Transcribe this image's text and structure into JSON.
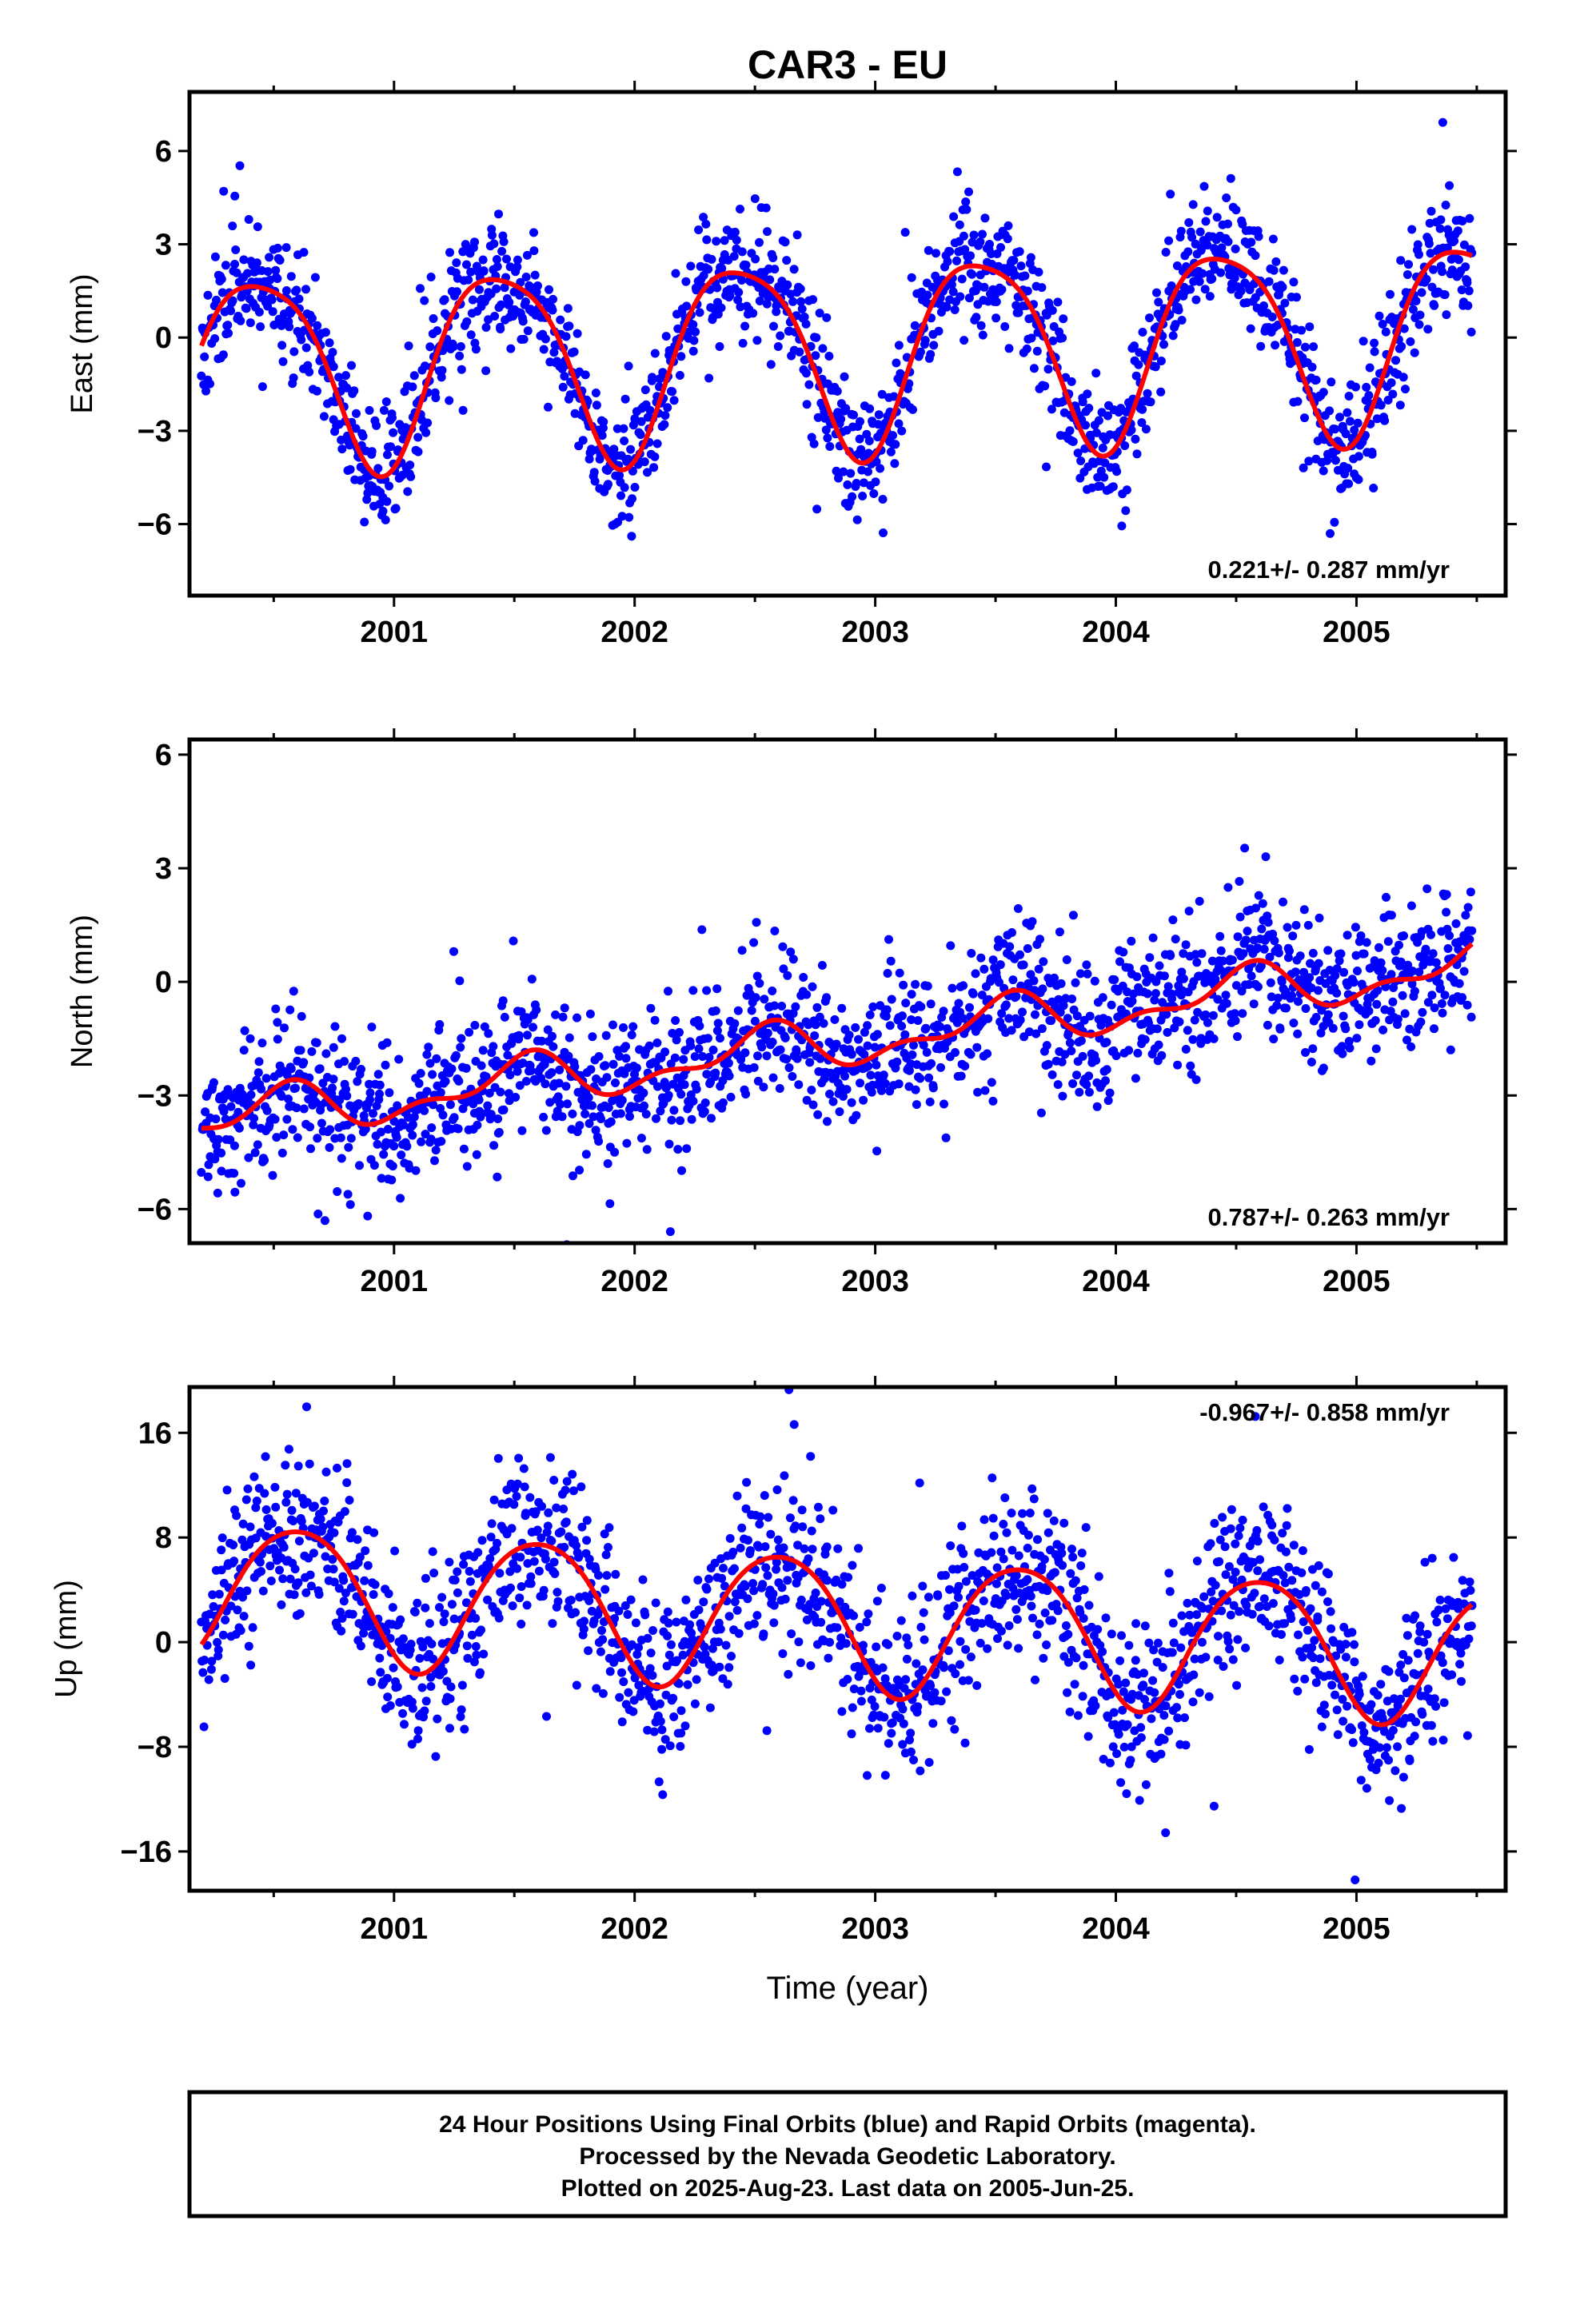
{
  "title": "CAR3 - EU",
  "xlabel": "Time (year)",
  "footer": {
    "line1": "24 Hour Positions Using Final Orbits (blue) and Rapid Orbits (magenta).",
    "line2": "Processed by the Nevada Geodetic Laboratory.",
    "line3": "Plotted on 2025-Aug-23. Last data on 2005-Jun-25."
  },
  "colors": {
    "points": "#0000ff",
    "model": "#ff0000",
    "frame": "#000000"
  },
  "chart_data": [
    {
      "type": "scatter",
      "id": "east",
      "ylabel": "East (mm)",
      "xlim": [
        2000.15,
        2005.62
      ],
      "ylim": [
        -8.3,
        7.9
      ],
      "yticks": [
        6,
        3,
        0,
        -3,
        -6
      ],
      "ytick_labels": [
        "6",
        "3",
        "0",
        "−3",
        "−6"
      ],
      "xticks": [
        2001,
        2002,
        2003,
        2004,
        2005
      ],
      "xtick_labels": [
        "2001",
        "2002",
        "2003",
        "2004",
        "2005"
      ],
      "rate_text": "0.221+/- 0.287 mm/yr",
      "rate_position": "bottom-right",
      "data_span": [
        2000.2,
        2005.48
      ],
      "model": {
        "offset": -0.43,
        "trend": 0.221,
        "amplitude": 3.1,
        "phase_peak": 0.44,
        "amp2": 0.55,
        "phase2_peak": 0.21
      },
      "noise_sd": 1.0,
      "seed": 11
    },
    {
      "type": "scatter",
      "id": "north",
      "ylabel": "North (mm)",
      "xlim": [
        2000.15,
        2005.62
      ],
      "ylim": [
        -6.9,
        6.4
      ],
      "yticks": [
        6,
        3,
        0,
        -3,
        -6
      ],
      "ytick_labels": [
        "6",
        "3",
        "0",
        "−3",
        "−6"
      ],
      "xticks": [
        2001,
        2002,
        2003,
        2004,
        2005
      ],
      "xtick_labels": [
        "2001",
        "2002",
        "2003",
        "2004",
        "2005"
      ],
      "rate_text": "0.787+/- 0.263 mm/yr",
      "rate_position": "bottom-right",
      "data_span": [
        2000.2,
        2005.48
      ],
      "model": {
        "offset": -1.65,
        "trend": 0.787,
        "amplitude": 0.55,
        "phase_peak": 0.53,
        "amp2": 0.3,
        "phase2_peak": 0.1
      },
      "noise_sd": 0.9,
      "seed": 23
    },
    {
      "type": "scatter",
      "id": "up",
      "ylabel": "Up (mm)",
      "xlim": [
        2000.15,
        2005.62
      ],
      "ylim": [
        -19,
        19.5
      ],
      "yticks": [
        16,
        8,
        0,
        -8,
        -16
      ],
      "ytick_labels": [
        "16",
        "8",
        "0",
        "−8",
        "−16"
      ],
      "xticks": [
        2001,
        2002,
        2003,
        2004,
        2005
      ],
      "xtick_labels": [
        "2001",
        "2002",
        "2003",
        "2004",
        "2005"
      ],
      "rate_text": "-0.967+/- 0.858 mm/yr",
      "rate_position": "top-right",
      "data_span": [
        2000.2,
        2005.48
      ],
      "model": {
        "offset": 1.7,
        "trend": -0.967,
        "amplitude": 5.2,
        "phase_peak": 0.6,
        "amp2": 0.6,
        "phase2_peak": 0.35
      },
      "noise_sd": 3.2,
      "seed": 37
    }
  ]
}
